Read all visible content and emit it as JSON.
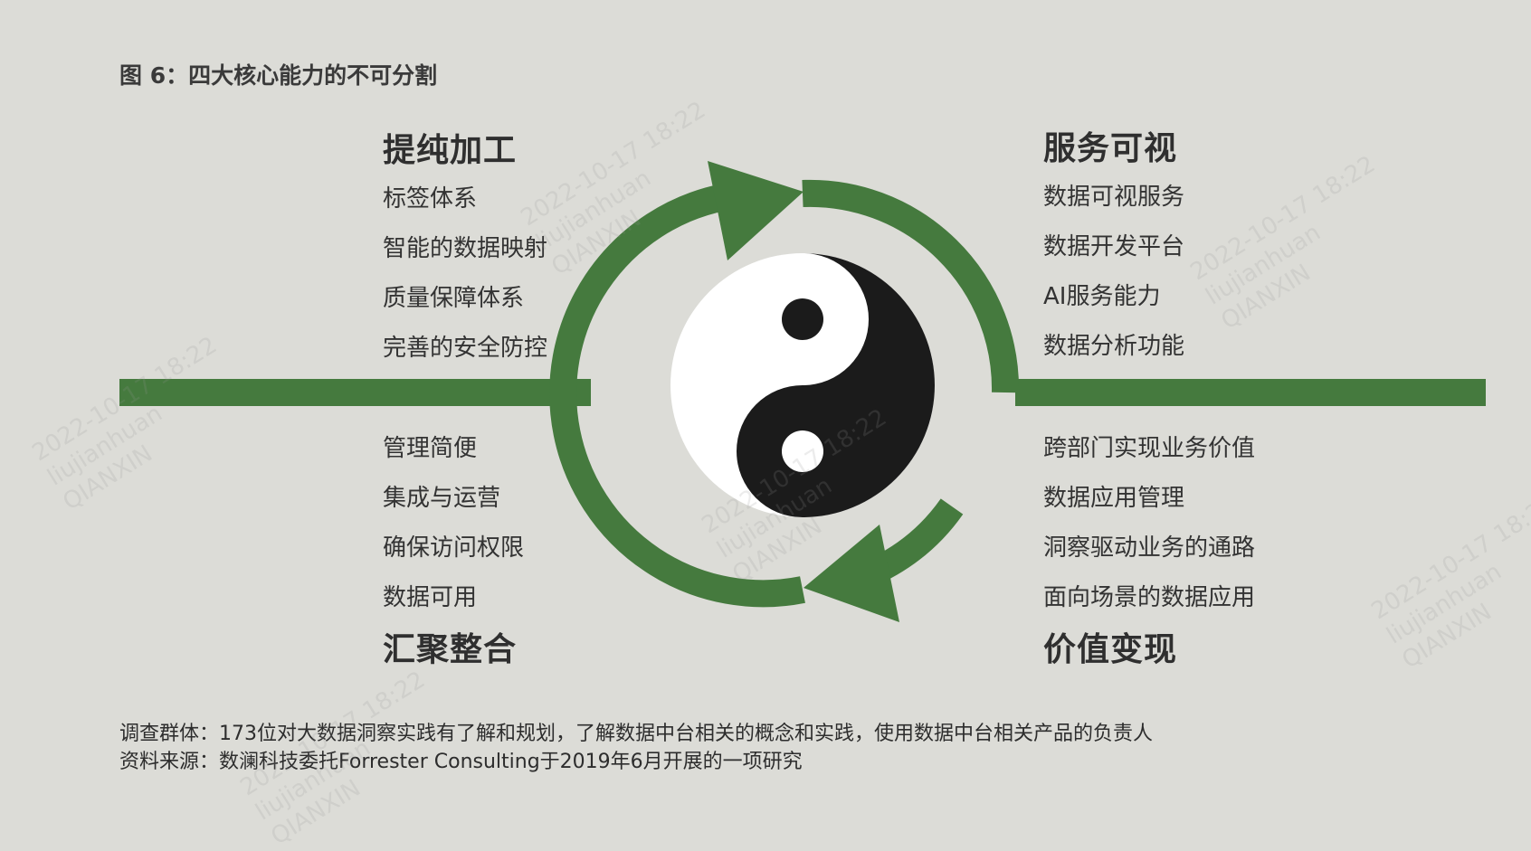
{
  "figure_title": "图 6：四大核心能力的不可分割",
  "quadrants": {
    "top_left": {
      "title": "提纯加工",
      "items": [
        "标签体系",
        "智能的数据映射",
        "质量保障体系",
        "完善的安全防控"
      ]
    },
    "top_right": {
      "title": "服务可视",
      "items": [
        "数据可视服务",
        "数据开发平台",
        "AI服务能力",
        "数据分析功能"
      ]
    },
    "bottom_left": {
      "title": "汇聚整合",
      "items": [
        "管理简便",
        "集成与运营",
        "确保访问权限",
        "数据可用"
      ]
    },
    "bottom_right": {
      "title": "价值变现",
      "items": [
        "跨部门实现业务价值",
        "数据应用管理",
        "洞察驱动业务的通路",
        "面向场景的数据应用"
      ]
    }
  },
  "footnotes": {
    "survey": "调查群体：173位对大数据洞察实践有了解和规划，了解数据中台相关的概念和实践，使用数据中台相关产品的负责人",
    "source": "资料来源：数澜科技委托Forrester Consulting于2019年6月开展的一项研究"
  },
  "watermark": {
    "line1": "2022-10-17 18:22",
    "line2": "liujianhuan",
    "line3": "QIANXIN"
  },
  "colors": {
    "background": "#dcdcd7",
    "accent_green": "#457a3e",
    "yin": "#1b1b1b",
    "yang": "#ffffff"
  },
  "icons": [
    "cycle-arrows-icon",
    "yin-yang-icon"
  ]
}
